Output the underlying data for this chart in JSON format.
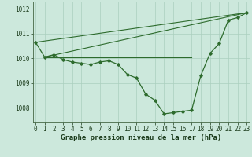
{
  "hours": [
    0,
    1,
    2,
    3,
    4,
    5,
    6,
    7,
    8,
    9,
    10,
    11,
    12,
    13,
    14,
    15,
    16,
    17,
    18,
    19,
    20,
    21,
    22,
    23
  ],
  "pressure": [
    1010.65,
    1010.05,
    1010.15,
    1009.95,
    1009.85,
    1009.8,
    1009.75,
    1009.85,
    1009.9,
    1009.75,
    1009.35,
    1009.2,
    1008.55,
    1008.3,
    1007.75,
    1007.8,
    1007.85,
    1007.9,
    1009.3,
    1010.2,
    1010.6,
    1011.55,
    1011.65,
    1011.85
  ],
  "envelope_line1": [
    [
      0,
      1010.65
    ],
    [
      23,
      1011.85
    ]
  ],
  "envelope_line2": [
    [
      1,
      1010.05
    ],
    [
      23,
      1011.85
    ]
  ],
  "envelope_line3": [
    [
      1,
      1010.05
    ],
    [
      17,
      1010.05
    ]
  ],
  "bg_color": "#cce8dc",
  "grid_color": "#aacfbe",
  "line_color": "#2d6b2d",
  "ylabel_values": [
    1008,
    1009,
    1010,
    1011,
    1012
  ],
  "ylim": [
    1007.4,
    1012.3
  ],
  "xlim": [
    -0.3,
    23.3
  ],
  "xlabel": "Graphe pression niveau de la mer (hPa)",
  "xlabel_fontsize": 6.5,
  "tick_fontsize": 5.5
}
